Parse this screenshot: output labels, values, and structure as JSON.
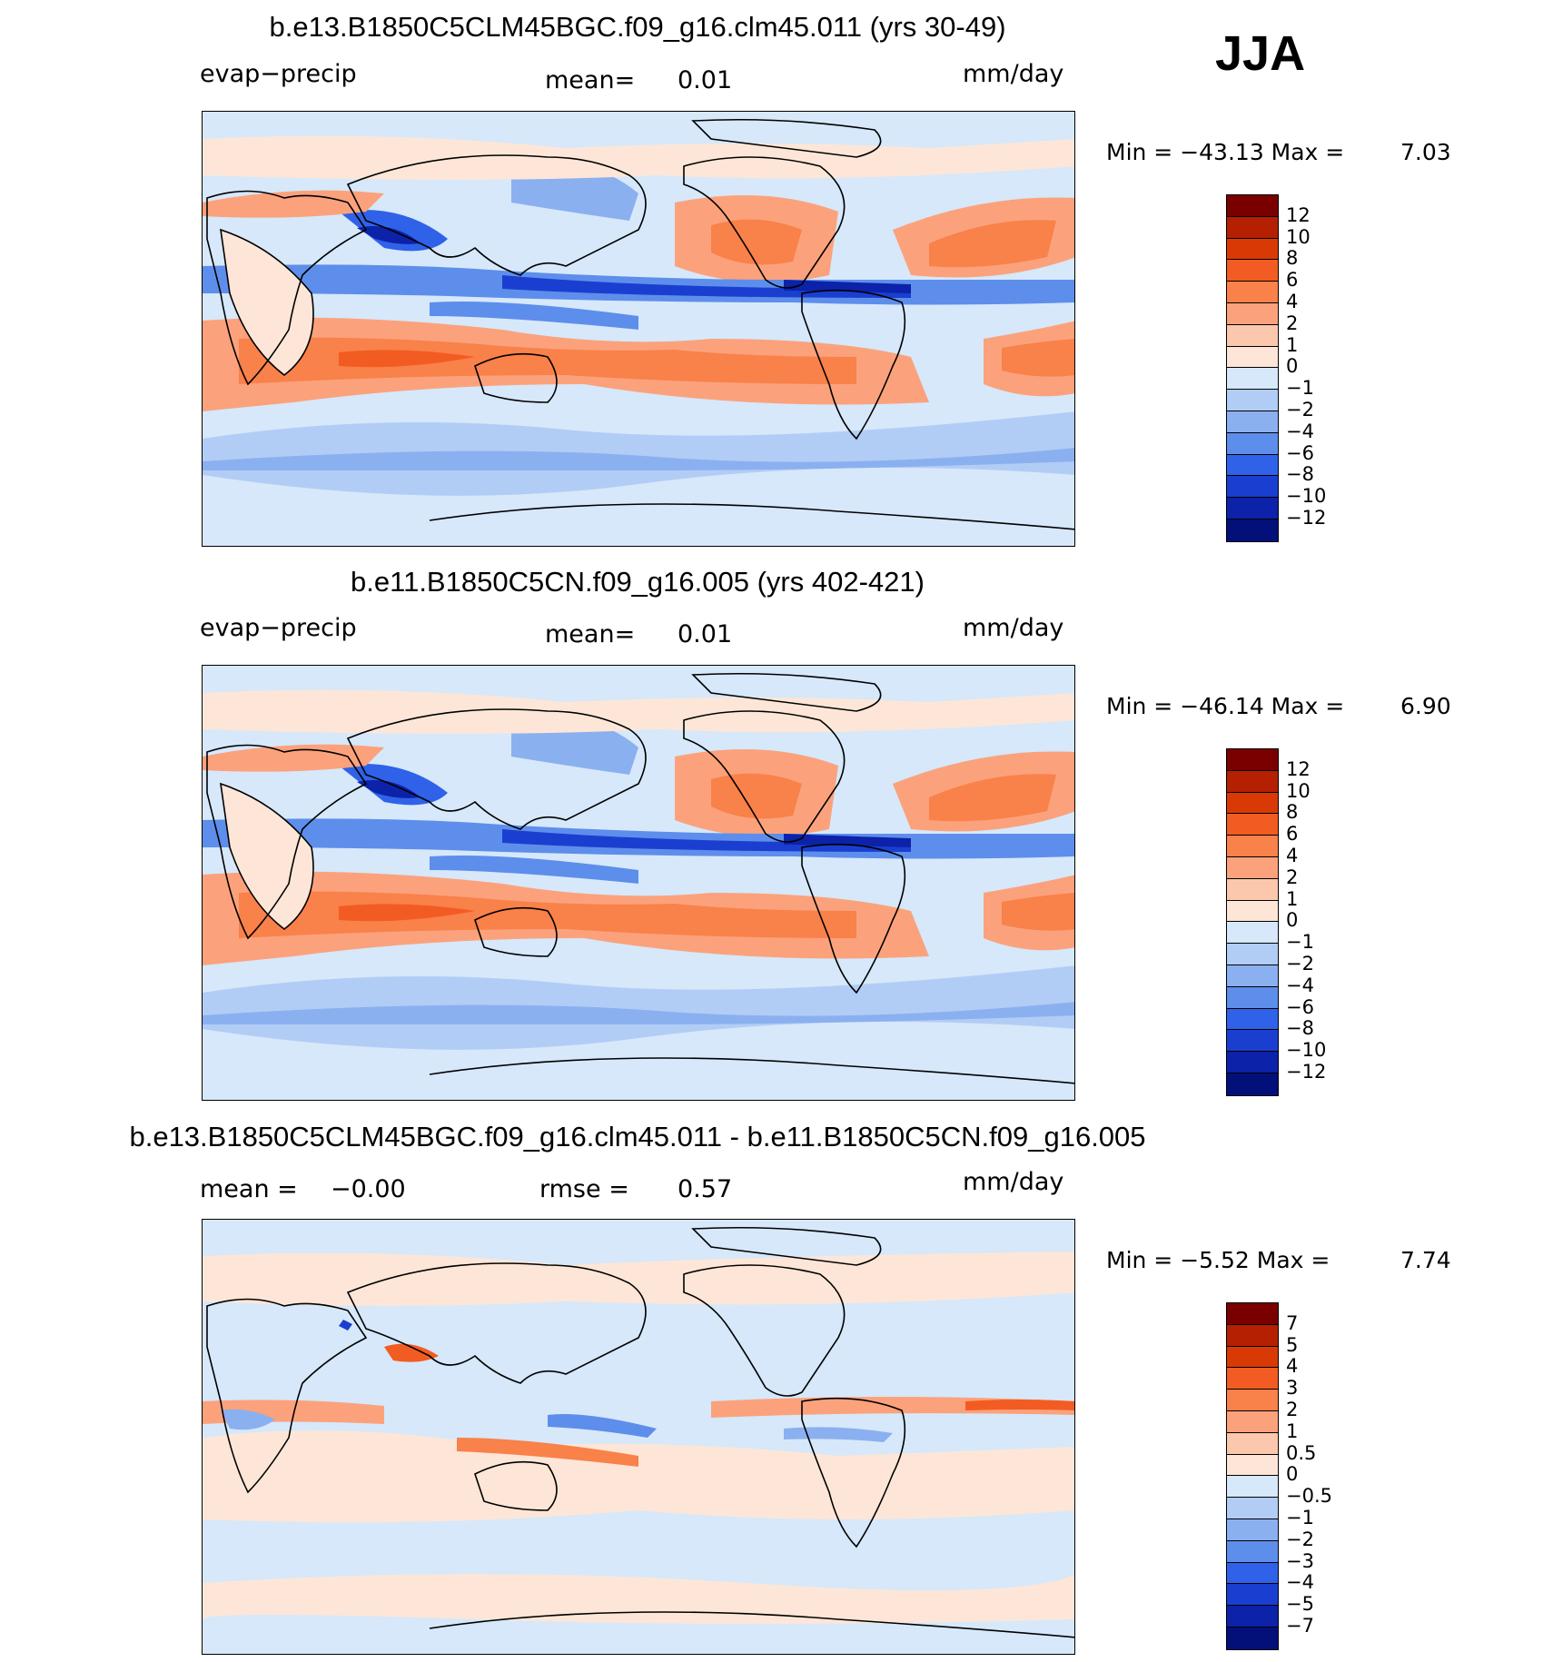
{
  "season": "JJA",
  "panels": [
    {
      "title": "b.e13.B1850C5CLM45BGC.f09_g16.clm45.011 (yrs 30-49)",
      "variable": "evap−precip",
      "stat_left": "",
      "stat_mid": "mean=",
      "stat_mid_value": "0.01",
      "units": "mm/day",
      "min_label": "Min  =  −43.13  Max  =",
      "max_value": "7.03",
      "colorbar_labels": [
        "12",
        "10",
        "8",
        "6",
        "4",
        "2",
        "1",
        "0",
        "−1",
        "−2",
        "−4",
        "−6",
        "−8",
        "−10",
        "−12"
      ],
      "colors": [
        "#7a0000",
        "#b52002",
        "#d93a05",
        "#f25c22",
        "#f9814a",
        "#fba27c",
        "#fcc8ad",
        "#fde6d8",
        "#d6e8fa",
        "#b2cdf5",
        "#8bb0f0",
        "#5e8eeb",
        "#2f62e8",
        "#1a3fd0",
        "#0c22a8",
        "#03107a"
      ]
    },
    {
      "title": "b.e11.B1850C5CN.f09_g16.005 (yrs 402-421)",
      "variable": "evap−precip",
      "stat_left": "",
      "stat_mid": "mean=",
      "stat_mid_value": "0.01",
      "units": "mm/day",
      "min_label": "Min  =  −46.14  Max  =",
      "max_value": "6.90",
      "colorbar_labels": [
        "12",
        "10",
        "8",
        "6",
        "4",
        "2",
        "1",
        "0",
        "−1",
        "−2",
        "−4",
        "−6",
        "−8",
        "−10",
        "−12"
      ],
      "colors": [
        "#7a0000",
        "#b52002",
        "#d93a05",
        "#f25c22",
        "#f9814a",
        "#fba27c",
        "#fcc8ad",
        "#fde6d8",
        "#d6e8fa",
        "#b2cdf5",
        "#8bb0f0",
        "#5e8eeb",
        "#2f62e8",
        "#1a3fd0",
        "#0c22a8",
        "#03107a"
      ]
    },
    {
      "title": "b.e13.B1850C5CLM45BGC.f09_g16.clm45.011 - b.e11.B1850C5CN.f09_g16.005",
      "variable": "mean  =",
      "stat_left": "−0.00",
      "stat_mid": "rmse  =",
      "stat_mid_value": "0.57",
      "units": "mm/day",
      "min_label": "Min  =    −5.52  Max  =",
      "max_value": "7.74",
      "colorbar_labels": [
        "7",
        "5",
        "4",
        "3",
        "2",
        "1",
        "0.5",
        "0",
        "−0.5",
        "−1",
        "−2",
        "−3",
        "−4",
        "−5",
        "−7"
      ],
      "colors": [
        "#7a0000",
        "#b52002",
        "#d93a05",
        "#f25c22",
        "#f9814a",
        "#fba27c",
        "#fcc8ad",
        "#fde6d8",
        "#d6e8fa",
        "#b2cdf5",
        "#8bb0f0",
        "#5e8eeb",
        "#2f62e8",
        "#1a3fd0",
        "#0c22a8",
        "#03107a"
      ]
    }
  ]
}
